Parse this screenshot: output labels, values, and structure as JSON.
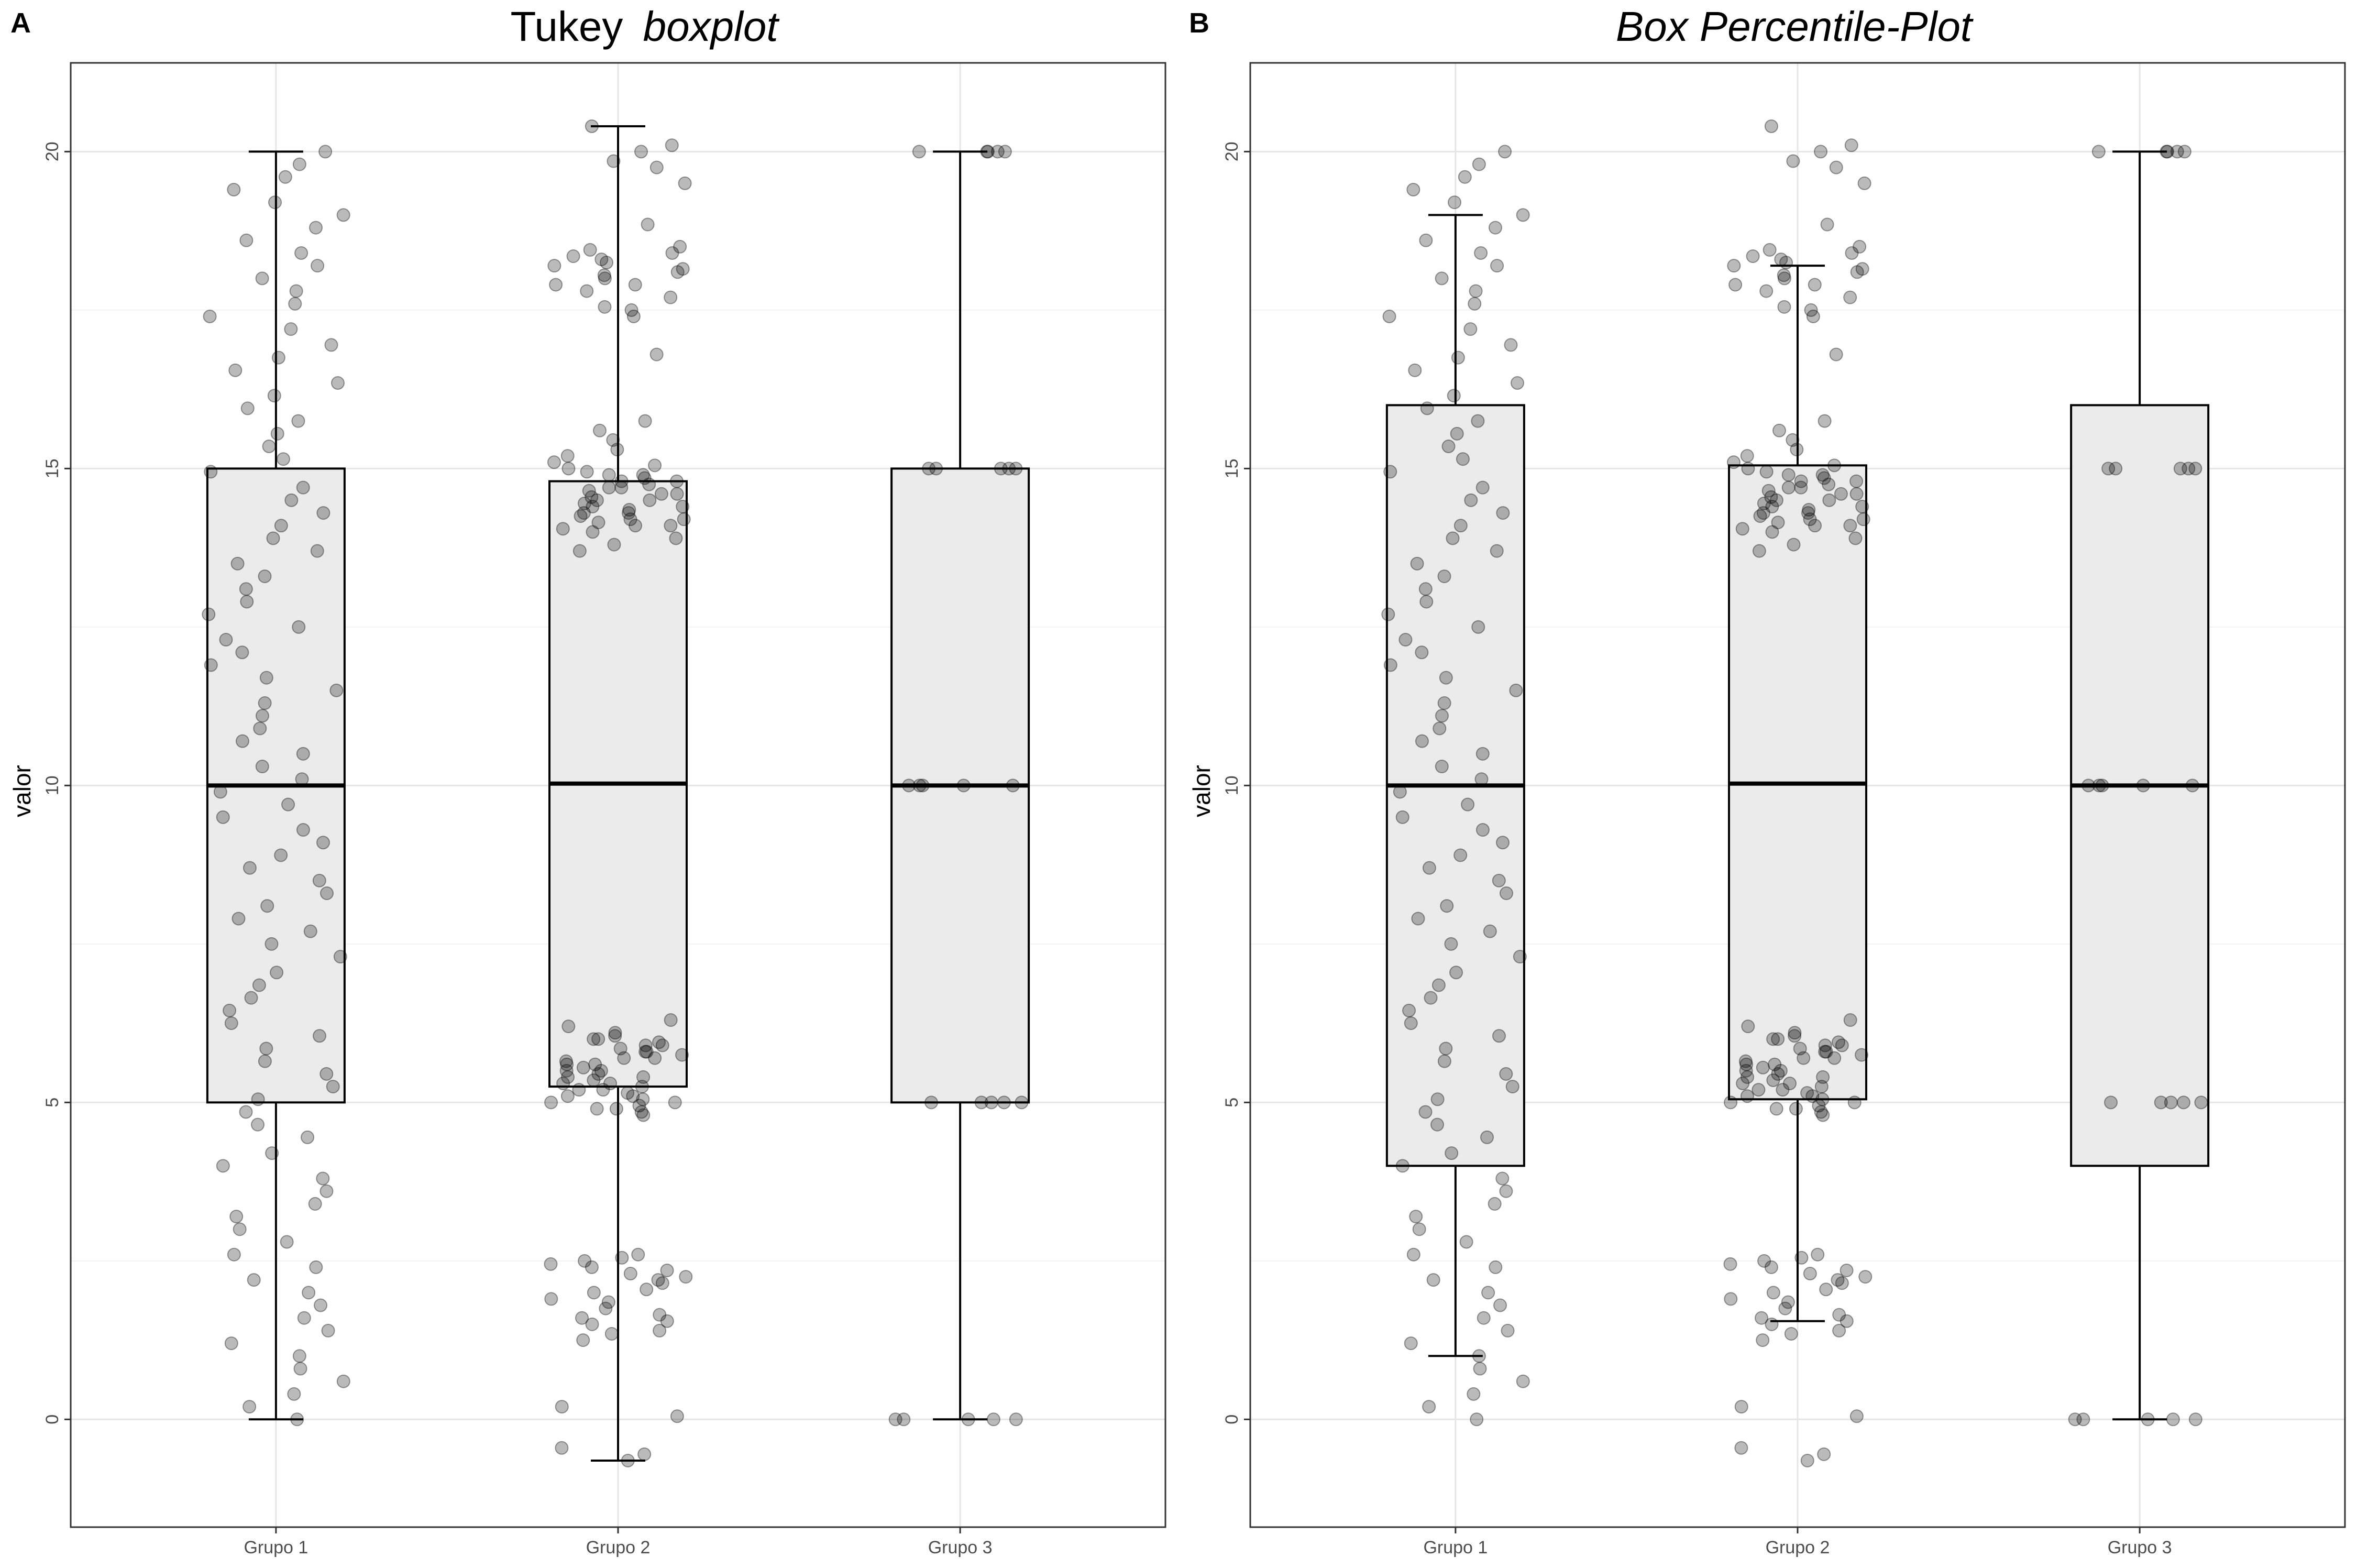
{
  "chart_data": [
    {
      "type": "box",
      "panel_label": "A",
      "title_parts": [
        {
          "text": "Tukey",
          "italic": false
        },
        {
          "text": "boxplot",
          "italic": true
        }
      ],
      "ylabel": "valor",
      "xlabel": "",
      "categories": [
        "Grupo 1",
        "Grupo 2",
        "Grupo 3"
      ],
      "ylim": [
        -1.7,
        21.4
      ],
      "yticks": [
        0,
        5,
        10,
        15,
        20
      ],
      "grid": true,
      "boxes": [
        {
          "category": "Grupo 1",
          "whisker_low": 0,
          "q1": 5,
          "median": 10,
          "q3": 15,
          "whisker_high": 20
        },
        {
          "category": "Grupo 2",
          "whisker_low": -0.65,
          "q1": 5.25,
          "median": 10.03,
          "q3": 14.8,
          "whisker_high": 20.4
        },
        {
          "category": "Grupo 3",
          "whisker_low": 0,
          "q1": 5,
          "median": 10,
          "q3": 15,
          "whisker_high": 20
        }
      ]
    },
    {
      "type": "box",
      "panel_label": "B",
      "title_parts": [
        {
          "text": "Box Percentile-Plot",
          "italic": true
        }
      ],
      "ylabel": "valor",
      "xlabel": "",
      "categories": [
        "Grupo 1",
        "Grupo 2",
        "Grupo 3"
      ],
      "ylim": [
        -1.7,
        21.4
      ],
      "yticks": [
        0,
        5,
        10,
        15,
        20
      ],
      "grid": true,
      "boxes": [
        {
          "category": "Grupo 1",
          "whisker_low": 1,
          "q1": 4,
          "median": 10,
          "q3": 16,
          "whisker_high": 19
        },
        {
          "category": "Grupo 2",
          "whisker_low": 1.55,
          "q1": 5.05,
          "median": 10.03,
          "q3": 15.05,
          "whisker_high": 18.2
        },
        {
          "category": "Grupo 3",
          "whisker_low": 0,
          "q1": 4,
          "median": 10,
          "q3": 16,
          "whisker_high": 20
        }
      ]
    }
  ],
  "points": {
    "Grupo 1": [
      0,
      0.2,
      0.4,
      0.6,
      0.8,
      1.0,
      1.2,
      1.4,
      1.6,
      1.8,
      2.0,
      2.2,
      2.4,
      2.6,
      2.8,
      3.0,
      3.2,
      3.4,
      3.6,
      3.8,
      4.0,
      4.2,
      4.45,
      4.65,
      4.85,
      5.05,
      5.25,
      5.45,
      5.65,
      5.85,
      6.05,
      6.25,
      6.45,
      6.65,
      6.85,
      7.05,
      7.3,
      7.5,
      7.7,
      7.9,
      8.1,
      8.3,
      8.5,
      8.7,
      8.9,
      9.1,
      9.3,
      9.5,
      9.7,
      9.9,
      10.1,
      10.3,
      10.5,
      10.7,
      10.9,
      11.1,
      11.3,
      11.5,
      11.7,
      11.9,
      12.1,
      12.3,
      12.5,
      12.7,
      12.9,
      13.1,
      13.3,
      13.5,
      13.7,
      13.9,
      14.1,
      14.3,
      14.5,
      14.7,
      14.95,
      15.15,
      15.35,
      15.55,
      15.75,
      15.95,
      16.15,
      16.35,
      16.55,
      16.75,
      16.95,
      17.2,
      17.4,
      17.6,
      17.8,
      18.0,
      18.2,
      18.4,
      18.6,
      18.8,
      19.0,
      19.2,
      19.4,
      19.6,
      19.8,
      20.0
    ],
    "Grupo 2": [
      -0.65,
      -0.55,
      -0.45,
      0.05,
      0.2,
      1.25,
      1.35,
      1.4,
      1.5,
      1.55,
      1.6,
      1.65,
      1.75,
      1.85,
      1.9,
      2.0,
      2.05,
      2.15,
      2.2,
      2.25,
      2.3,
      2.35,
      2.4,
      2.45,
      2.5,
      2.55,
      2.6,
      4.8,
      4.85,
      4.9,
      4.95,
      5.0,
      5.05,
      5.1,
      5.15,
      5.2,
      5.25,
      5.3,
      5.35,
      5.4,
      5.45,
      5.5,
      5.55,
      5.6,
      5.65,
      5.7,
      5.75,
      5.8,
      5.85,
      5.9,
      5.95,
      6.0,
      6.05,
      6.1,
      6.2,
      6.3,
      4.9,
      5.0,
      5.1,
      5.2,
      5.3,
      5.4,
      5.5,
      5.6,
      5.7,
      5.8,
      5.9,
      6.0,
      13.7,
      13.8,
      13.9,
      14.0,
      14.05,
      14.1,
      14.15,
      14.2,
      14.25,
      14.3,
      14.35,
      14.4,
      14.45,
      14.5,
      14.55,
      14.6,
      14.65,
      14.7,
      14.75,
      14.8,
      14.85,
      14.9,
      14.95,
      15.0,
      15.05,
      15.1,
      15.2,
      15.3,
      15.45,
      15.6,
      15.75,
      14.1,
      14.3,
      14.5,
      14.7,
      14.9,
      14.2,
      14.4,
      14.6,
      14.8,
      17.4,
      17.55,
      17.7,
      17.8,
      17.9,
      18.0,
      18.05,
      18.1,
      18.15,
      18.2,
      18.25,
      18.3,
      18.35,
      18.4,
      18.45,
      18.5,
      18.85,
      19.5,
      19.75,
      19.85,
      20.0,
      20.1,
      20.4,
      16.8,
      17.5,
      17.9
    ],
    "Grupo 3": [
      0,
      0,
      0,
      0,
      0,
      5,
      5,
      5,
      5,
      5,
      10,
      10,
      10,
      10,
      10,
      15,
      15,
      15,
      15,
      15,
      20,
      20,
      20,
      20,
      20
    ]
  }
}
